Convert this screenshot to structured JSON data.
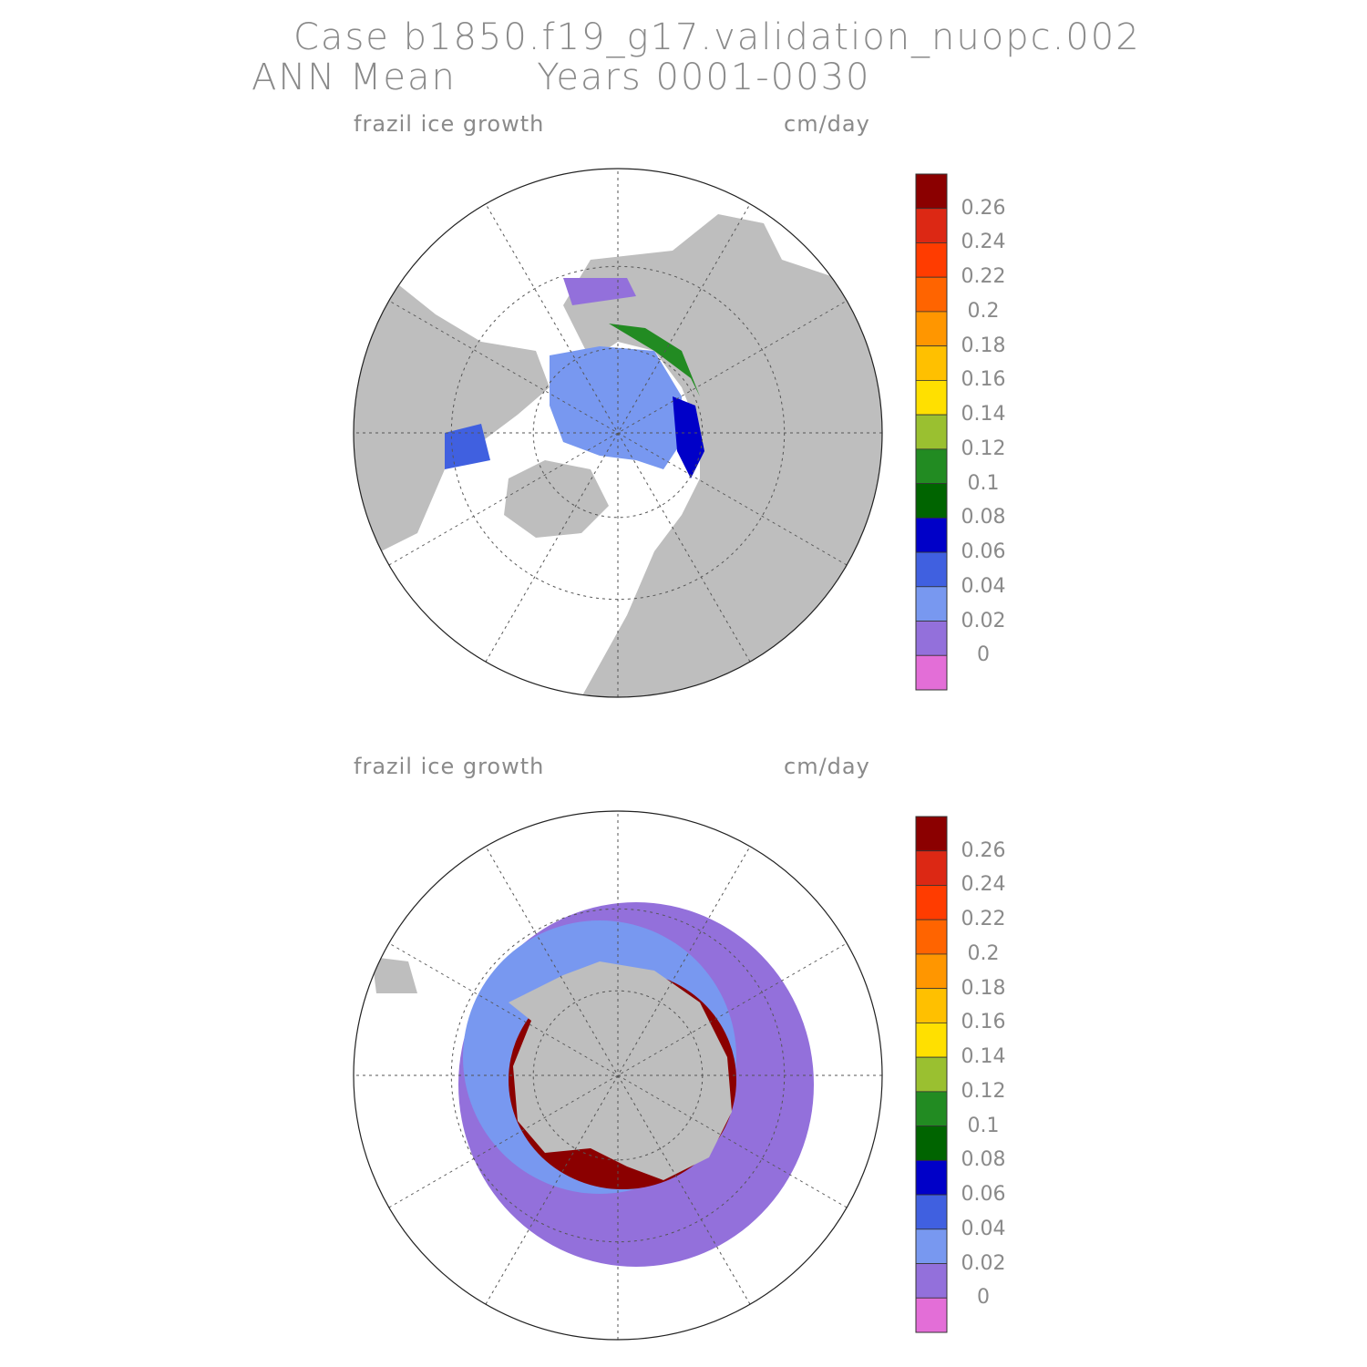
{
  "header": {
    "line1": "Case b1850.f19_g17.validation_nuopc.002",
    "line2": "ANN Mean      Years 0001-0030"
  },
  "panels": [
    {
      "variable": "frazil ice growth",
      "units": "cm/day",
      "hemisphere": "north"
    },
    {
      "variable": "frazil ice growth",
      "units": "cm/day",
      "hemisphere": "south"
    }
  ],
  "colorbar": {
    "labels": [
      "0.26",
      "0.24",
      "0.22",
      "0.2",
      "0.18",
      "0.16",
      "0.14",
      "0.12",
      "0.1",
      "0.08",
      "0.06",
      "0.04",
      "0.02",
      "0"
    ],
    "colors": [
      "#8b0000",
      "#dc2814",
      "#ff3c00",
      "#ff6400",
      "#ff9600",
      "#ffc000",
      "#ffe000",
      "#9ac030",
      "#228b22",
      "#006400",
      "#0000c8",
      "#4060e0",
      "#7898f0",
      "#9370db",
      "#e36ed7"
    ]
  },
  "colors": {
    "land": "#bebebe",
    "ocean": "#ffffff",
    "grid": "#555555"
  }
}
